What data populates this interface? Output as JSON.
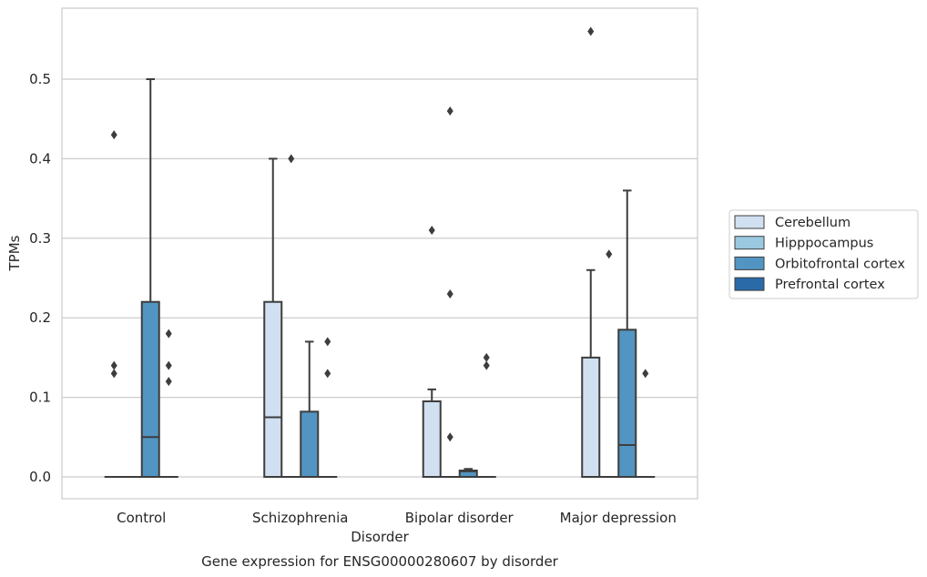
{
  "chart_data": {
    "type": "box",
    "title": "Gene expression for ENSG00000280607 by disorder",
    "xlabel": "Disorder",
    "ylabel": "TPMs",
    "ylim": [
      -0.028,
      0.59
    ],
    "yticks": [
      0.0,
      0.1,
      0.2,
      0.3,
      0.4,
      0.5
    ],
    "ytick_labels": [
      "0.0",
      "0.1",
      "0.2",
      "0.3",
      "0.4",
      "0.5"
    ],
    "grid": "horizontal",
    "legend_position": "right",
    "categories": [
      "Control",
      "Schizophrenia",
      "Bipolar disorder",
      "Major depression"
    ],
    "series": [
      {
        "name": "Cerebellum",
        "color": "#d1e0f0",
        "boxes": [
          {
            "q1": 0,
            "median": 0,
            "q3": 0,
            "whisker_low": 0,
            "whisker_high": 0,
            "outliers": [
              0.13,
              0.14,
              0.43
            ]
          },
          {
            "q1": 0,
            "median": 0.075,
            "q3": 0.22,
            "whisker_low": 0,
            "whisker_high": 0.4,
            "outliers": []
          },
          {
            "q1": 0,
            "median": 0,
            "q3": 0.095,
            "whisker_low": 0,
            "whisker_high": 0.11,
            "outliers": [
              0.31
            ]
          },
          {
            "q1": 0,
            "median": 0,
            "q3": 0.15,
            "whisker_low": 0,
            "whisker_high": 0.26,
            "outliers": [
              0.56
            ]
          }
        ]
      },
      {
        "name": "Hipppocampus",
        "color": "#9ac8e0",
        "boxes": [
          {
            "q1": 0,
            "median": 0,
            "q3": 0,
            "whisker_low": 0,
            "whisker_high": 0,
            "outliers": []
          },
          {
            "q1": 0,
            "median": 0,
            "q3": 0,
            "whisker_low": 0,
            "whisker_high": 0,
            "outliers": [
              0.4
            ]
          },
          {
            "q1": 0,
            "median": 0,
            "q3": 0,
            "whisker_low": 0,
            "whisker_high": 0,
            "outliers": [
              0.05,
              0.23,
              0.46
            ]
          },
          {
            "q1": 0,
            "median": 0,
            "q3": 0,
            "whisker_low": 0,
            "whisker_high": 0,
            "outliers": [
              0.28
            ]
          }
        ]
      },
      {
        "name": "Orbitofrontal cortex",
        "color": "#5395c2",
        "boxes": [
          {
            "q1": 0,
            "median": 0.05,
            "q3": 0.22,
            "whisker_low": 0,
            "whisker_high": 0.5,
            "outliers": []
          },
          {
            "q1": 0,
            "median": 0,
            "q3": 0.082,
            "whisker_low": 0,
            "whisker_high": 0.17,
            "outliers": []
          },
          {
            "q1": 0,
            "median": 0.007,
            "q3": 0.008,
            "whisker_low": 0,
            "whisker_high": 0.01,
            "outliers": []
          },
          {
            "q1": 0,
            "median": 0.04,
            "q3": 0.185,
            "whisker_low": 0,
            "whisker_high": 0.36,
            "outliers": []
          }
        ]
      },
      {
        "name": "Prefrontal cortex",
        "color": "#2a6aa9",
        "boxes": [
          {
            "q1": 0,
            "median": 0,
            "q3": 0,
            "whisker_low": 0,
            "whisker_high": 0,
            "outliers": [
              0.12,
              0.14,
              0.18
            ]
          },
          {
            "q1": 0,
            "median": 0,
            "q3": 0,
            "whisker_low": 0,
            "whisker_high": 0,
            "outliers": [
              0.13,
              0.17
            ]
          },
          {
            "q1": 0,
            "median": 0,
            "q3": 0,
            "whisker_low": 0,
            "whisker_high": 0,
            "outliers": [
              0.14,
              0.15
            ]
          },
          {
            "q1": 0,
            "median": 0,
            "q3": 0,
            "whisker_low": 0,
            "whisker_high": 0,
            "outliers": [
              0.13
            ]
          }
        ]
      }
    ]
  }
}
